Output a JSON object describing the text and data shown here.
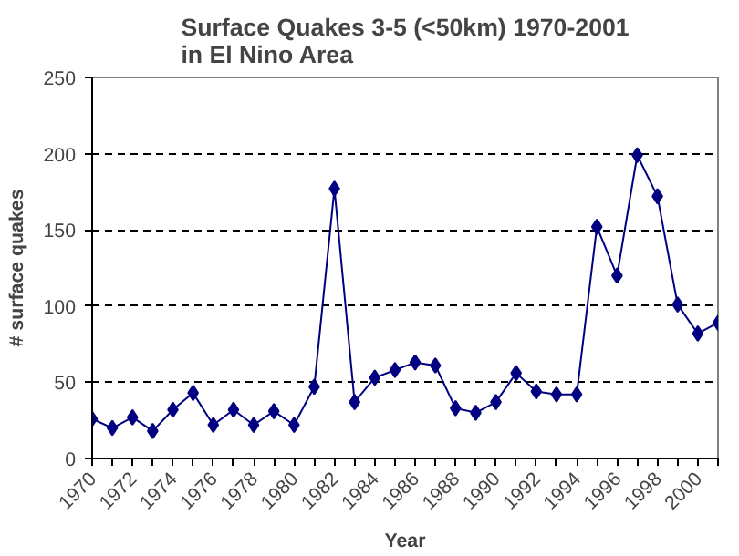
{
  "chart_data": {
    "type": "line",
    "title": "Surface Quakes 3-5 (<50km) 1970-2001\nin El Nino Area",
    "xlabel": "Year",
    "ylabel": "# surface quakes",
    "categories": [
      "1970",
      null,
      "1972",
      null,
      "1974",
      null,
      "1976",
      null,
      "1978",
      null,
      "1980",
      null,
      "1982",
      null,
      "1984",
      null,
      "1986",
      null,
      "1988",
      null,
      "1990",
      null,
      "1992",
      null,
      "1994",
      null,
      "1996",
      null,
      "1998",
      null,
      "2000",
      null
    ],
    "series": [
      {
        "color": "#000080",
        "values": [
          26,
          20,
          27,
          18,
          32,
          43,
          22,
          32,
          22,
          31,
          22,
          47,
          177,
          37,
          53,
          58,
          63,
          61,
          33,
          30,
          37,
          56,
          44,
          42,
          42,
          152,
          120,
          199,
          172,
          101,
          82,
          89
        ]
      }
    ],
    "ylim": [
      0,
      250
    ],
    "yticks": [
      0,
      50,
      100,
      150,
      200,
      250
    ],
    "grid": "y",
    "marker": "diamond",
    "line_style": "solid"
  }
}
